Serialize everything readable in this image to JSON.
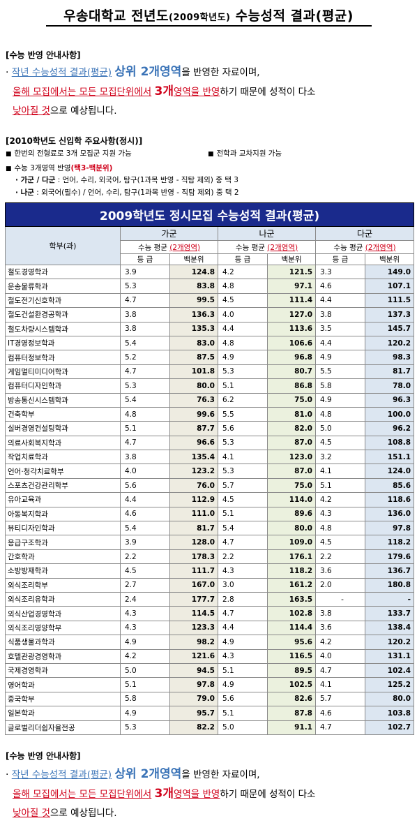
{
  "title": {
    "main_a": "우송대학교 전년도",
    "paren": "(2009학년도)",
    "main_b": " 수능성적 결과(평균)"
  },
  "notice": {
    "heading": "[수능 반영 안내사항]",
    "bullet": "·",
    "l1_a": "작년 수능성적 결과(평균)",
    "l1_b": "상위 2개영역",
    "l1_c": "을 반영한 자료이며,",
    "l2_a": "올해 모집에서는 모든 모집단위에서",
    "l2_b": "3개",
    "l2_c": "영역을 반영",
    "l2_d": "하기 때문에 성적이 다소",
    "l3_a": "낮아질 것",
    "l3_b": "으로 예상됩니다."
  },
  "info": {
    "heading": "[2010학년도 신입학 주요사항(정시)]",
    "square": "■",
    "item1": "한번의 전형료로 3개 모집군 지원 가능",
    "item2": "전학과 교차지원 가능",
    "item3_a": "수능 3개영역 반영",
    "item3_b": "(택3-백분위)",
    "sub1_a": "· 가군 / 다군",
    "sub1_b": " : 언어, 수리, 외국어, 탐구(1과목 반영 - 직탐 제외) 중 택 3",
    "sub2_a": "· 나군",
    "sub2_b": " : 외국어(필수) / 언어, 수리, 탐구(1과목 반영 - 직탐 제외) 중 택 2"
  },
  "table": {
    "banner": "2009학년도 정시모집 수능성적 결과(평균)",
    "dept_header": "학부(과)",
    "groups": [
      "가군",
      "나군",
      "다군"
    ],
    "avg_label": "수능 평균",
    "avg_paren": "(2개영역)",
    "grade_label": "등 급",
    "pct_label": "백분위",
    "rows": [
      {
        "name": "철도경영학과",
        "ga_g": "3.9",
        "ga_p": "124.8",
        "na_g": "4.2",
        "na_p": "121.5",
        "da_g": "3.3",
        "da_p": "149.0"
      },
      {
        "name": "운송물류학과",
        "ga_g": "5.3",
        "ga_p": "83.8",
        "na_g": "4.8",
        "na_p": "97.1",
        "da_g": "4.6",
        "da_p": "107.1"
      },
      {
        "name": "철도전기신호학과",
        "ga_g": "4.7",
        "ga_p": "99.5",
        "na_g": "4.5",
        "na_p": "111.4",
        "da_g": "4.4",
        "da_p": "111.5"
      },
      {
        "name": "철도건설환경공학과",
        "ga_g": "3.8",
        "ga_p": "136.3",
        "na_g": "4.0",
        "na_p": "127.0",
        "da_g": "3.8",
        "da_p": "137.3"
      },
      {
        "name": "철도차량시스템학과",
        "ga_g": "3.8",
        "ga_p": "135.3",
        "na_g": "4.4",
        "na_p": "113.6",
        "da_g": "3.5",
        "da_p": "145.7"
      },
      {
        "name": "IT경영정보학과",
        "ga_g": "5.4",
        "ga_p": "83.0",
        "na_g": "4.8",
        "na_p": "106.6",
        "da_g": "4.4",
        "da_p": "120.2"
      },
      {
        "name": "컴퓨터정보학과",
        "ga_g": "5.2",
        "ga_p": "87.5",
        "na_g": "4.9",
        "na_p": "96.8",
        "da_g": "4.9",
        "da_p": "98.3"
      },
      {
        "name": "게임멀티미디어학과",
        "ga_g": "4.7",
        "ga_p": "101.8",
        "na_g": "5.3",
        "na_p": "80.7",
        "da_g": "5.5",
        "da_p": "81.7"
      },
      {
        "name": "컴퓨터디자인학과",
        "ga_g": "5.3",
        "ga_p": "80.0",
        "na_g": "5.1",
        "na_p": "86.8",
        "da_g": "5.8",
        "da_p": "78.0"
      },
      {
        "name": "방송통신시스템학과",
        "ga_g": "5.4",
        "ga_p": "76.3",
        "na_g": "6.2",
        "na_p": "75.0",
        "da_g": "4.9",
        "da_p": "96.3"
      },
      {
        "name": "건축학부",
        "ga_g": "4.8",
        "ga_p": "99.6",
        "na_g": "5.5",
        "na_p": "81.0",
        "da_g": "4.8",
        "da_p": "100.0"
      },
      {
        "name": "실버경영컨설팅학과",
        "ga_g": "5.1",
        "ga_p": "87.7",
        "na_g": "5.6",
        "na_p": "82.0",
        "da_g": "5.0",
        "da_p": "96.2"
      },
      {
        "name": "의료사회복지학과",
        "ga_g": "4.7",
        "ga_p": "96.6",
        "na_g": "5.3",
        "na_p": "87.0",
        "da_g": "4.5",
        "da_p": "108.8"
      },
      {
        "name": "작업치료학과",
        "ga_g": "3.8",
        "ga_p": "135.4",
        "na_g": "4.1",
        "na_p": "123.0",
        "da_g": "3.2",
        "da_p": "151.1"
      },
      {
        "name": "언어·청각치료학부",
        "ga_g": "4.0",
        "ga_p": "123.2",
        "na_g": "5.3",
        "na_p": "87.0",
        "da_g": "4.1",
        "da_p": "124.0"
      },
      {
        "name": "스포츠건강관리학부",
        "ga_g": "5.6",
        "ga_p": "76.0",
        "na_g": "5.7",
        "na_p": "75.0",
        "da_g": "5.1",
        "da_p": "85.6"
      },
      {
        "name": "유아교육과",
        "ga_g": "4.4",
        "ga_p": "112.9",
        "na_g": "4.5",
        "na_p": "114.0",
        "da_g": "4.2",
        "da_p": "118.6"
      },
      {
        "name": "아동복지학과",
        "ga_g": "4.6",
        "ga_p": "111.0",
        "na_g": "5.1",
        "na_p": "89.6",
        "da_g": "4.3",
        "da_p": "136.0"
      },
      {
        "name": "뷰티디자인학과",
        "ga_g": "5.4",
        "ga_p": "81.7",
        "na_g": "5.4",
        "na_p": "80.0",
        "da_g": "4.8",
        "da_p": "97.8"
      },
      {
        "name": "응급구조학과",
        "ga_g": "3.9",
        "ga_p": "128.0",
        "na_g": "4.7",
        "na_p": "109.0",
        "da_g": "4.5",
        "da_p": "118.2"
      },
      {
        "name": "간호학과",
        "ga_g": "2.2",
        "ga_p": "178.3",
        "na_g": "2.2",
        "na_p": "176.1",
        "da_g": "2.2",
        "da_p": "179.6"
      },
      {
        "name": "소방방재학과",
        "ga_g": "4.5",
        "ga_p": "111.7",
        "na_g": "4.3",
        "na_p": "118.2",
        "da_g": "3.6",
        "da_p": "136.7"
      },
      {
        "name": "외식조리학부",
        "ga_g": "2.7",
        "ga_p": "167.0",
        "na_g": "3.0",
        "na_p": "161.2",
        "da_g": "2.0",
        "da_p": "180.8"
      },
      {
        "name": "외식조리유학과",
        "ga_g": "2.4",
        "ga_p": "177.7",
        "na_g": "2.8",
        "na_p": "163.5",
        "da_g": "-",
        "da_p": "-"
      },
      {
        "name": "외식산업경영학과",
        "ga_g": "4.3",
        "ga_p": "114.5",
        "na_g": "4.7",
        "na_p": "102.8",
        "da_g": "3.8",
        "da_p": "133.7"
      },
      {
        "name": "외식조리영양학부",
        "ga_g": "4.3",
        "ga_p": "123.3",
        "na_g": "4.4",
        "na_p": "114.4",
        "da_g": "3.6",
        "da_p": "138.4"
      },
      {
        "name": "식품생물과학과",
        "ga_g": "4.9",
        "ga_p": "98.2",
        "na_g": "4.9",
        "na_p": "95.6",
        "da_g": "4.2",
        "da_p": "120.2"
      },
      {
        "name": "호텔관광경영학과",
        "ga_g": "4.2",
        "ga_p": "121.6",
        "na_g": "4.3",
        "na_p": "116.5",
        "da_g": "4.0",
        "da_p": "131.1"
      },
      {
        "name": "국제경영학과",
        "ga_g": "5.0",
        "ga_p": "94.5",
        "na_g": "5.1",
        "na_p": "89.5",
        "da_g": "4.7",
        "da_p": "102.4"
      },
      {
        "name": "영어학과",
        "ga_g": "5.1",
        "ga_p": "97.8",
        "na_g": "4.9",
        "na_p": "102.5",
        "da_g": "4.1",
        "da_p": "125.2"
      },
      {
        "name": "중국학부",
        "ga_g": "5.8",
        "ga_p": "79.0",
        "na_g": "5.6",
        "na_p": "82.6",
        "da_g": "5.7",
        "da_p": "80.0"
      },
      {
        "name": "일본학과",
        "ga_g": "4.9",
        "ga_p": "95.7",
        "na_g": "5.1",
        "na_p": "87.8",
        "da_g": "4.6",
        "da_p": "103.8"
      },
      {
        "name": "글로벌리더쉽자율전공",
        "ga_g": "5.3",
        "ga_p": "82.2",
        "na_g": "5.0",
        "na_p": "91.1",
        "da_g": "4.7",
        "da_p": "102.7"
      }
    ]
  }
}
